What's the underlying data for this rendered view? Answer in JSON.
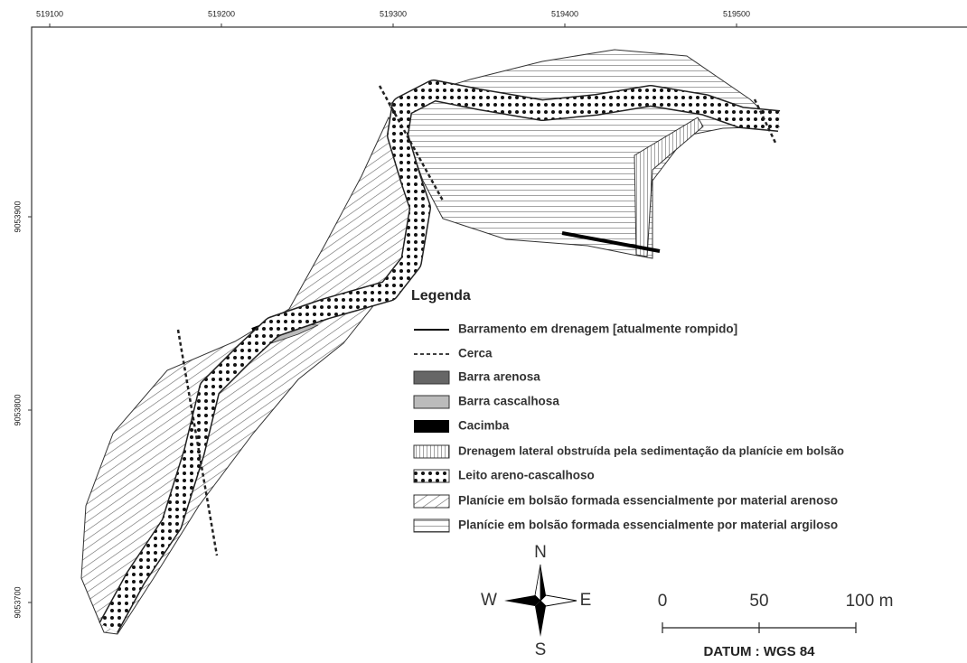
{
  "map": {
    "x_axis_labels": [
      519100,
      519200,
      519300,
      519400,
      519500
    ],
    "y_axis_labels": [
      9053900,
      9053800,
      9053700
    ],
    "legend": {
      "title": "Legenda",
      "items": [
        "Barramento em drenagem [atualmente rompido]",
        "Cerca",
        "Barra arenosa",
        "Barra cascalhosa",
        "Cacimba",
        "Drenagem lateral obstruída pela sedimentação da planície em bolsão",
        "Leito areno-cascalhoso",
        "Planície em bolsão formada essencialmente por material arenoso",
        "Planície em bolsão formada essencialmente por material argiloso"
      ]
    },
    "compass": {
      "north": "N",
      "south": "S",
      "east": "E",
      "west": "W"
    },
    "scale_bar": {
      "labels": [
        "0",
        "50",
        "100 m"
      ],
      "datum": "DATUM : WGS 84"
    }
  }
}
